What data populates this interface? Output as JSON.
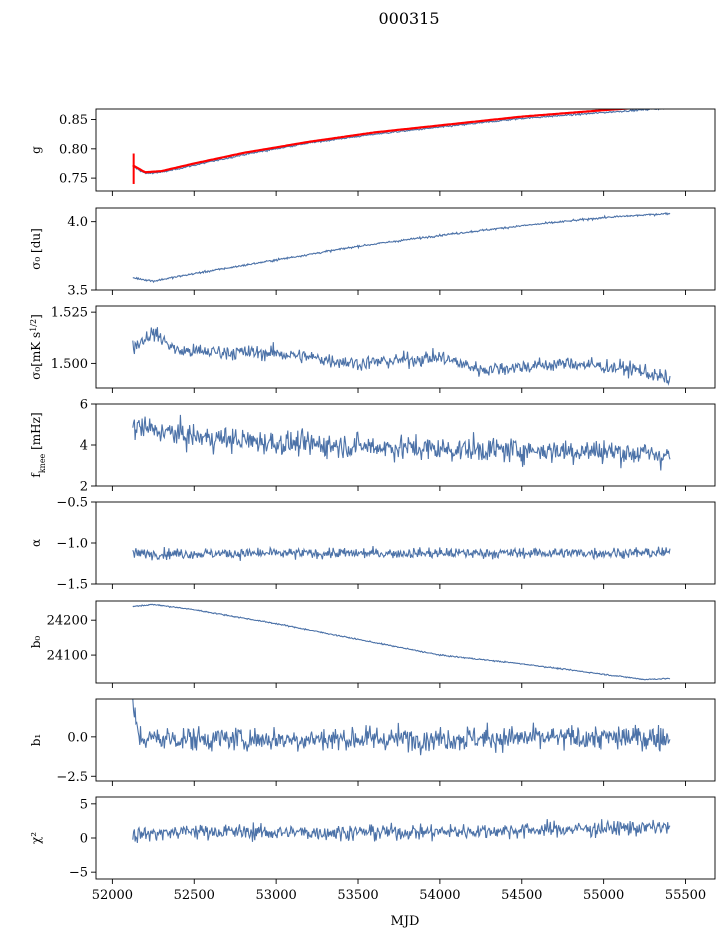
{
  "chart_data": {
    "type": "line",
    "title": "000315",
    "xlabel": "MJD",
    "xlim": [
      51900,
      55680
    ],
    "xticks": [
      52000,
      52500,
      53000,
      53500,
      54000,
      54500,
      55000,
      55500
    ],
    "xtick_labels": [
      "52000",
      "52500",
      "53000",
      "53500",
      "54000",
      "54500",
      "55000",
      "55500"
    ],
    "x_range": [
      52125,
      55405
    ],
    "line_color": "#4c72a8",
    "fit_color": "#ff0000",
    "panels": [
      {
        "id": "g",
        "ylabel": "g",
        "ylim": [
          0.728,
          0.868
        ],
        "yticks": [
          0.75,
          0.8,
          0.85
        ],
        "ytick_labels": [
          "0.75",
          "0.80",
          "0.85"
        ],
        "trend": [
          [
            52125,
            0.77
          ],
          [
            52200,
            0.758
          ],
          [
            52300,
            0.76
          ],
          [
            52500,
            0.772
          ],
          [
            52800,
            0.79
          ],
          [
            53200,
            0.81
          ],
          [
            53600,
            0.825
          ],
          [
            54000,
            0.837
          ],
          [
            54500,
            0.852
          ],
          [
            55000,
            0.862
          ],
          [
            55405,
            0.87
          ]
        ],
        "noise": 0.001,
        "fit": [
          [
            52125,
            0.772
          ],
          [
            52200,
            0.76
          ],
          [
            52300,
            0.762
          ],
          [
            52500,
            0.775
          ],
          [
            52800,
            0.793
          ],
          [
            53200,
            0.812
          ],
          [
            53600,
            0.828
          ],
          [
            54000,
            0.84
          ],
          [
            54500,
            0.855
          ],
          [
            55000,
            0.866
          ],
          [
            55405,
            0.874
          ]
        ],
        "fit_error_x": 52130,
        "fit_error_range": [
          0.74,
          0.792
        ]
      },
      {
        "id": "sigma0",
        "ylabel": "σ₀ [du]",
        "ylim": [
          3.5,
          4.1
        ],
        "yticks": [
          3.5,
          4.0
        ],
        "ytick_labels": [
          "3.5",
          "4.0"
        ],
        "trend": [
          [
            52125,
            3.59
          ],
          [
            52250,
            3.565
          ],
          [
            52500,
            3.62
          ],
          [
            53000,
            3.72
          ],
          [
            53500,
            3.82
          ],
          [
            54000,
            3.9
          ],
          [
            54500,
            3.97
          ],
          [
            55000,
            4.03
          ],
          [
            55400,
            4.06
          ]
        ],
        "noise": 0.005
      },
      {
        "id": "sigma0k",
        "ylabel": "σ₀[mK s^1/2]",
        "ylim": [
          1.488,
          1.528
        ],
        "yticks": [
          1.5,
          1.525
        ],
        "ytick_labels": [
          "1.500",
          "1.525"
        ],
        "trend": [
          [
            52125,
            1.508
          ],
          [
            52250,
            1.515
          ],
          [
            52400,
            1.506
          ],
          [
            53000,
            1.505
          ],
          [
            53500,
            1.5
          ],
          [
            54000,
            1.503
          ],
          [
            54250,
            1.497
          ],
          [
            54800,
            1.5
          ],
          [
            55200,
            1.497
          ],
          [
            55400,
            1.492
          ]
        ],
        "noise": 0.0025
      },
      {
        "id": "fknee",
        "ylabel": "f_knee [mHz]",
        "ylim": [
          2,
          6
        ],
        "yticks": [
          2,
          4,
          6
        ],
        "ytick_labels": [
          "2",
          "4",
          "6"
        ],
        "trend": [
          [
            52125,
            4.9
          ],
          [
            52500,
            4.4
          ],
          [
            53000,
            4.1
          ],
          [
            54000,
            3.8
          ],
          [
            55000,
            3.7
          ],
          [
            55400,
            3.5
          ]
        ],
        "noise": 0.42
      },
      {
        "id": "alpha",
        "ylabel": "α",
        "ylim": [
          -1.5,
          -0.5
        ],
        "yticks": [
          -1.5,
          -1.0,
          -0.5
        ],
        "ytick_labels": [
          "−1.5",
          "−1.0",
          "−0.5"
        ],
        "trend": [
          [
            52125,
            -1.13
          ],
          [
            55400,
            -1.12
          ]
        ],
        "noise": 0.045
      },
      {
        "id": "b0",
        "ylabel": "b₀",
        "ylim": [
          24020,
          24255
        ],
        "yticks": [
          24100,
          24200
        ],
        "ytick_labels": [
          "24100",
          "24200"
        ],
        "trend": [
          [
            52125,
            24240
          ],
          [
            52250,
            24245
          ],
          [
            52500,
            24230
          ],
          [
            53000,
            24190
          ],
          [
            53500,
            24145
          ],
          [
            54000,
            24100
          ],
          [
            54500,
            24075
          ],
          [
            55000,
            24045
          ],
          [
            55250,
            24030
          ],
          [
            55400,
            24033
          ]
        ],
        "noise": 1.2
      },
      {
        "id": "b1",
        "ylabel": "b₁",
        "ylim": [
          -2.8,
          2.4
        ],
        "yticks": [
          -2.5,
          0.0
        ],
        "ytick_labels": [
          "−2.5",
          "0.0"
        ],
        "trend": [
          [
            52125,
            1.6
          ],
          [
            52170,
            -0.1
          ],
          [
            53000,
            -0.15
          ],
          [
            54000,
            -0.1
          ],
          [
            55400,
            -0.05
          ]
        ],
        "noise": 0.55
      },
      {
        "id": "chi2",
        "ylabel": "χ²",
        "ylim": [
          -6,
          6
        ],
        "yticks": [
          -5,
          0,
          5
        ],
        "ytick_labels": [
          "−5",
          "0",
          "5"
        ],
        "trend": [
          [
            52125,
            0.5
          ],
          [
            52500,
            1.0
          ],
          [
            53000,
            0.8
          ],
          [
            54000,
            0.9
          ],
          [
            55000,
            1.4
          ],
          [
            55400,
            1.6
          ]
        ],
        "noise": 0.8
      }
    ]
  }
}
